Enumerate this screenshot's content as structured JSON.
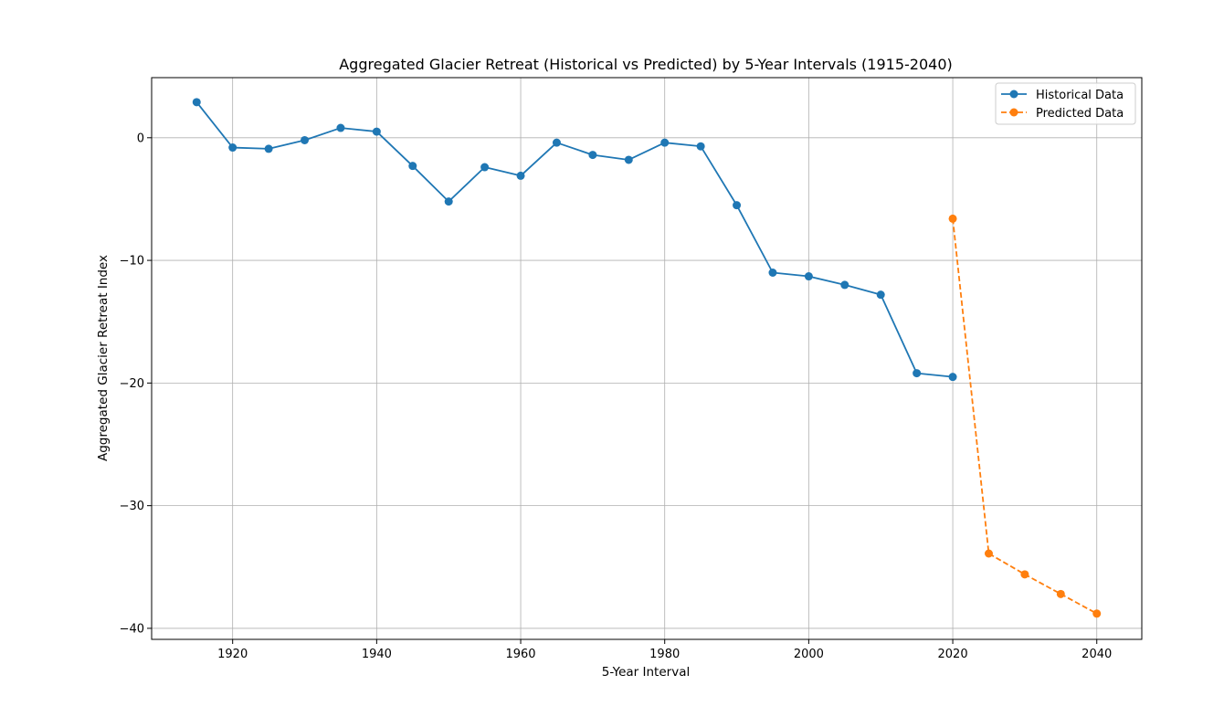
{
  "chart_data": {
    "type": "line",
    "title": "Aggregated Glacier Retreat (Historical vs Predicted) by 5-Year Intervals (1915-2040)",
    "xlabel": "5-Year Interval",
    "ylabel": "Aggregated Glacier Retreat Index",
    "xlim": [
      1908.75,
      2046.25
    ],
    "ylim": [
      -40.9,
      4.9
    ],
    "xticks": [
      1920,
      1940,
      1960,
      1980,
      2000,
      2020,
      2040
    ],
    "yticks": [
      0,
      -10,
      -20,
      -30,
      -40
    ],
    "ytick_labels": [
      "0",
      "−10",
      "−20",
      "−30",
      "−40"
    ],
    "grid": true,
    "legend_position": "top-right",
    "series": [
      {
        "name": "Historical Data",
        "color": "#1f77b4",
        "line_style": "solid",
        "marker": "circle",
        "x": [
          1915,
          1920,
          1925,
          1930,
          1935,
          1940,
          1945,
          1950,
          1955,
          1960,
          1965,
          1970,
          1975,
          1980,
          1985,
          1990,
          1995,
          2000,
          2005,
          2010,
          2015,
          2020
        ],
        "y": [
          2.9,
          -0.8,
          -0.9,
          -0.2,
          0.8,
          0.5,
          -2.3,
          -5.2,
          -2.4,
          -3.1,
          -0.4,
          -1.4,
          -1.8,
          -0.4,
          -0.7,
          -5.5,
          -11.0,
          -11.3,
          -12.0,
          -12.8,
          -19.2,
          -19.5
        ]
      },
      {
        "name": "Predicted Data",
        "color": "#ff7f0e",
        "line_style": "dashed",
        "marker": "circle",
        "x": [
          2020,
          2025,
          2030,
          2035,
          2040
        ],
        "y": [
          -6.6,
          -33.9,
          -35.6,
          -37.2,
          -38.8
        ]
      }
    ]
  }
}
